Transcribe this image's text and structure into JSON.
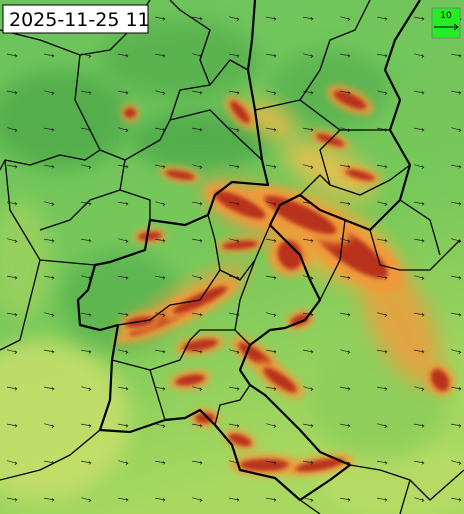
{
  "timestamp": "2025-11-25 11",
  "legend": {
    "label": 10
  }
}
